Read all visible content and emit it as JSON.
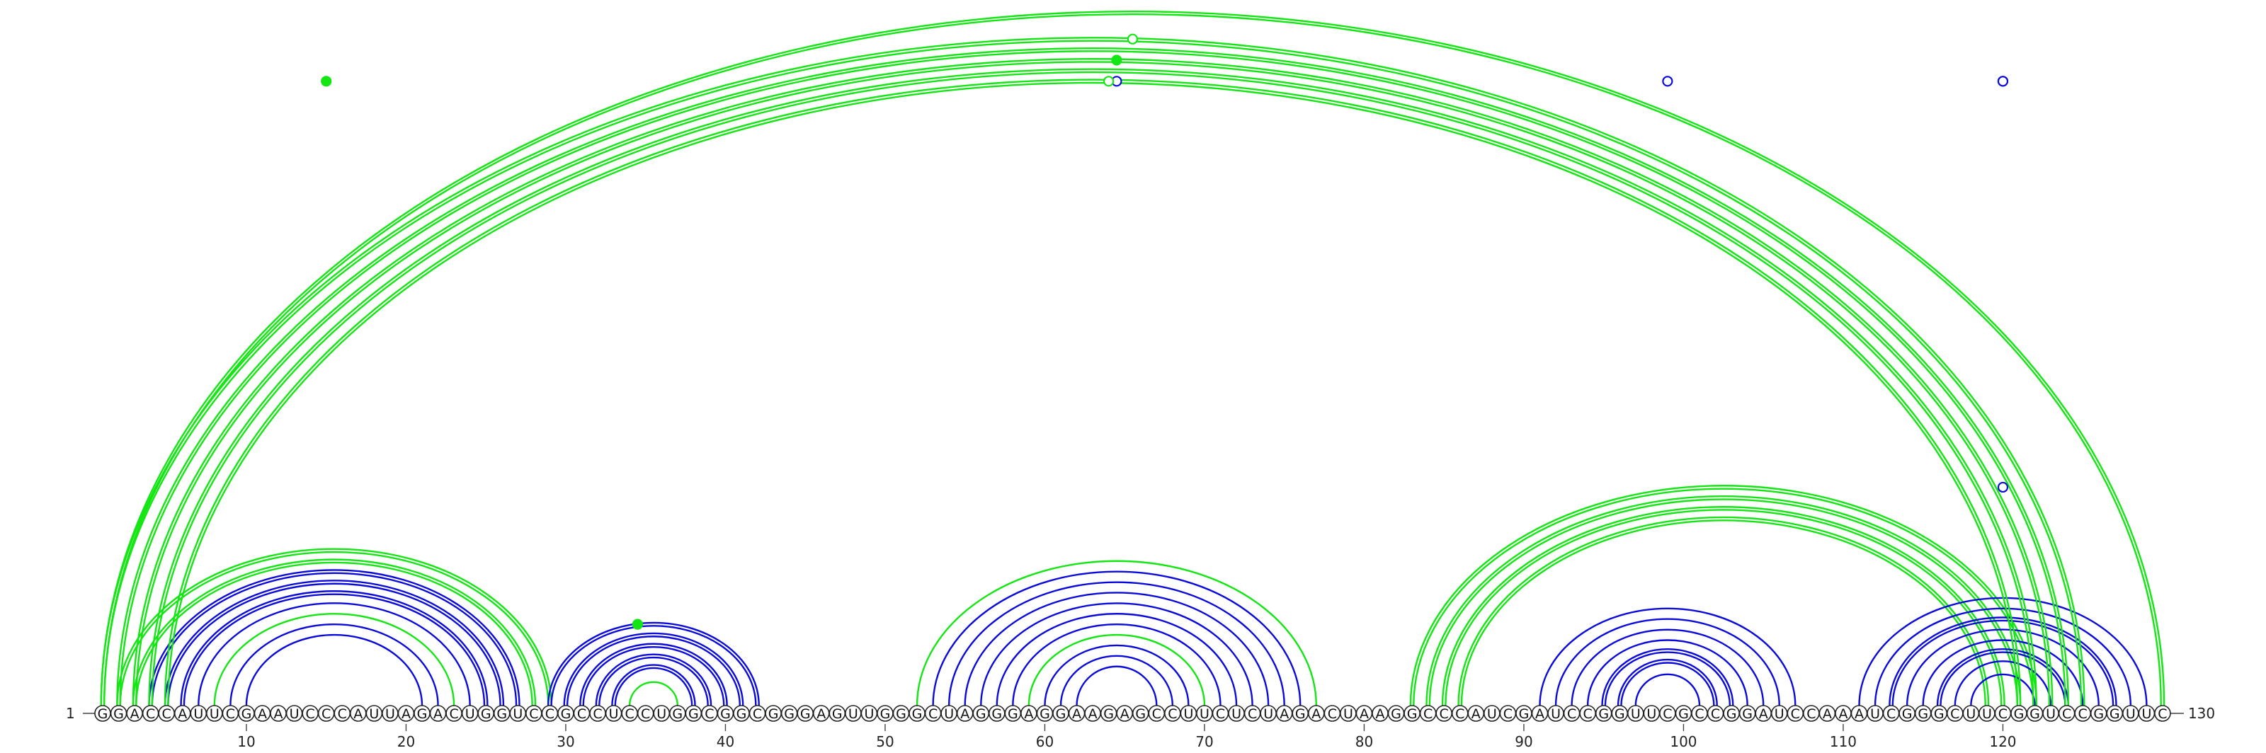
{
  "diagram": {
    "type": "rna-arc-diagram",
    "sequence": "GGACCAUUCGAAUCCCAUUAGACUGGUCCGCCUCCUGGCGGCGGGAGUUGGGCUAGGGAGGAAGAGCCUUCUCUAGACUAAGGCCCAUCGAUCCGGUUCGCCGGAUCCAAAUCGGGCUUCGGUCCGGUUC",
    "start_label": "1",
    "end_label": "130",
    "tick_labels": [
      "10",
      "20",
      "30",
      "40",
      "50",
      "60",
      "70",
      "80",
      "90",
      "100",
      "110",
      "120"
    ],
    "colors": {
      "blue": "#0a0adc",
      "green": "#14e614"
    },
    "arcs": [
      {
        "i": 2,
        "j": 29,
        "color": "green",
        "lines": 2
      },
      {
        "i": 3,
        "j": 28,
        "color": "green",
        "lines": 2
      },
      {
        "i": 4,
        "j": 27,
        "color": "blue",
        "lines": 2
      },
      {
        "i": 5,
        "j": 26,
        "color": "blue",
        "lines": 2
      },
      {
        "i": 6,
        "j": 25,
        "color": "blue",
        "lines": 2
      },
      {
        "i": 7,
        "j": 24,
        "color": "blue",
        "lines": 1
      },
      {
        "i": 8,
        "j": 23,
        "color": "green",
        "lines": 1
      },
      {
        "i": 9,
        "j": 22,
        "color": "blue",
        "lines": 1
      },
      {
        "i": 10,
        "j": 21,
        "color": "blue",
        "lines": 1
      },
      {
        "i": 29,
        "j": 42,
        "color": "blue",
        "lines": 2
      },
      {
        "i": 30,
        "j": 41,
        "color": "blue",
        "lines": 2
      },
      {
        "i": 31,
        "j": 40,
        "color": "blue",
        "lines": 2
      },
      {
        "i": 32,
        "j": 39,
        "color": "blue",
        "lines": 2
      },
      {
        "i": 33,
        "j": 38,
        "color": "blue",
        "lines": 2
      },
      {
        "i": 34,
        "j": 37,
        "color": "green",
        "lines": 1
      },
      {
        "i": 52,
        "j": 77,
        "color": "green",
        "lines": 1
      },
      {
        "i": 53,
        "j": 76,
        "color": "blue",
        "lines": 1
      },
      {
        "i": 54,
        "j": 75,
        "color": "blue",
        "lines": 1
      },
      {
        "i": 55,
        "j": 74,
        "color": "blue",
        "lines": 1
      },
      {
        "i": 56,
        "j": 73,
        "color": "blue",
        "lines": 1
      },
      {
        "i": 57,
        "j": 72,
        "color": "blue",
        "lines": 1
      },
      {
        "i": 58,
        "j": 71,
        "color": "blue",
        "lines": 1
      },
      {
        "i": 59,
        "j": 70,
        "color": "green",
        "lines": 1
      },
      {
        "i": 60,
        "j": 69,
        "color": "blue",
        "lines": 1
      },
      {
        "i": 61,
        "j": 68,
        "color": "blue",
        "lines": 1
      },
      {
        "i": 62,
        "j": 67,
        "color": "blue",
        "lines": 1
      },
      {
        "i": 83,
        "j": 122,
        "color": "green",
        "lines": 2
      },
      {
        "i": 84,
        "j": 121,
        "color": "green",
        "lines": 2
      },
      {
        "i": 85,
        "j": 120,
        "color": "green",
        "lines": 2
      },
      {
        "i": 86,
        "j": 119,
        "color": "green",
        "lines": 2
      },
      {
        "i": 91,
        "j": 107,
        "color": "blue",
        "lines": 1
      },
      {
        "i": 92,
        "j": 106,
        "color": "blue",
        "lines": 1
      },
      {
        "i": 93,
        "j": 105,
        "color": "blue",
        "lines": 1
      },
      {
        "i": 94,
        "j": 104,
        "color": "blue",
        "lines": 1
      },
      {
        "i": 95,
        "j": 103,
        "color": "blue",
        "lines": 2
      },
      {
        "i": 96,
        "j": 102,
        "color": "blue",
        "lines": 2
      },
      {
        "i": 97,
        "j": 101,
        "color": "blue",
        "lines": 1
      },
      {
        "i": 111,
        "j": 129,
        "color": "blue",
        "lines": 1
      },
      {
        "i": 112,
        "j": 128,
        "color": "blue",
        "lines": 1
      },
      {
        "i": 113,
        "j": 127,
        "color": "blue",
        "lines": 2
      },
      {
        "i": 114,
        "j": 126,
        "color": "blue",
        "lines": 1
      },
      {
        "i": 115,
        "j": 125,
        "color": "blue",
        "lines": 1
      },
      {
        "i": 116,
        "j": 124,
        "color": "blue",
        "lines": 2
      },
      {
        "i": 117,
        "j": 123,
        "color": "blue",
        "lines": 1
      },
      {
        "i": 118,
        "j": 122,
        "color": "blue",
        "lines": 1
      },
      {
        "i": 1,
        "j": 130,
        "color": "green",
        "lines": 2
      },
      {
        "i": 1,
        "j": 125,
        "color": "green",
        "lines": 2
      },
      {
        "i": 2,
        "j": 124,
        "color": "green",
        "lines": 2
      },
      {
        "i": 3,
        "j": 123,
        "color": "green",
        "lines": 2
      },
      {
        "i": 4,
        "j": 122,
        "color": "green",
        "lines": 2
      },
      {
        "i": 5,
        "j": 121,
        "color": "green",
        "lines": 2
      }
    ],
    "markers": [
      {
        "pos": 15,
        "level": 0.87,
        "style": "filled",
        "color": "green"
      },
      {
        "pos": 34.5,
        "level": 0.4,
        "style": "filled",
        "color": "green"
      },
      {
        "pos": 64.5,
        "level": 0.93,
        "style": "filled",
        "color": "green"
      },
      {
        "pos": 64.5,
        "level": 0.77,
        "style": "open",
        "color": "blue"
      },
      {
        "pos": 64,
        "level": 0.72,
        "style": "open",
        "color": "green"
      },
      {
        "pos": 99,
        "level": 0.6,
        "style": "open",
        "color": "blue"
      },
      {
        "pos": 120,
        "level": 0.84,
        "style": "open",
        "color": "blue"
      },
      {
        "pos": 120,
        "level": 0.7,
        "style": "open",
        "color": "blue"
      },
      {
        "pos": 120,
        "level": 0.5,
        "style": "open",
        "color": "blue"
      },
      {
        "pos": 65.5,
        "level": 0.96,
        "style": "open",
        "color": "green"
      }
    ]
  }
}
